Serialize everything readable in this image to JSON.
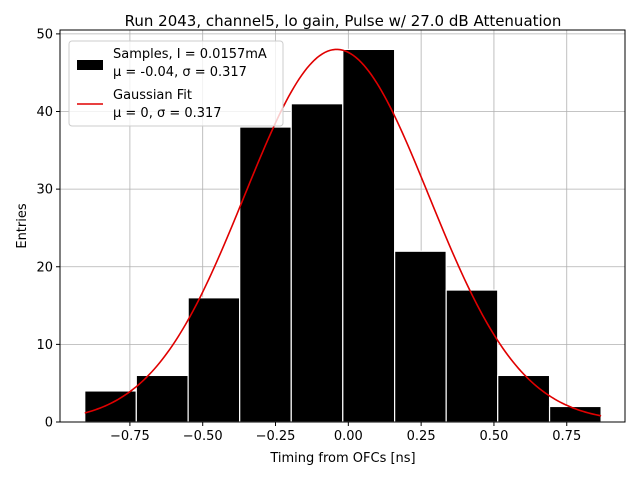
{
  "chart_data": {
    "type": "bar",
    "title": "Run 2043, channel5, lo gain, Pulse w/ 27.0 dB Attenuation",
    "xlabel": "Timing from OFCs [ns]",
    "ylabel": "Entries",
    "xlim": [
      -0.99,
      0.95
    ],
    "ylim": [
      0,
      50.5
    ],
    "xticks": [
      -0.75,
      -0.5,
      -0.25,
      0.0,
      0.25,
      0.5,
      0.75
    ],
    "xtick_labels": [
      "−0.75",
      "−0.50",
      "−0.25",
      "0.00",
      "0.25",
      "0.50",
      "0.75"
    ],
    "yticks": [
      0,
      10,
      20,
      30,
      40,
      50
    ],
    "ytick_labels": [
      "0",
      "10",
      "20",
      "30",
      "40",
      "50"
    ],
    "grid": true,
    "bin_edges": [
      -0.905,
      -0.728,
      -0.55,
      -0.373,
      -0.196,
      -0.019,
      0.159,
      0.336,
      0.513,
      0.691,
      0.868
    ],
    "values": [
      4,
      6,
      16,
      38,
      41,
      48,
      22,
      17,
      6,
      2
    ],
    "bar_color": "#000000",
    "fit": {
      "name": "Gaussian Fit",
      "stats": "μ = 0, σ = 0.317",
      "mu": -0.04,
      "sigma": 0.317,
      "amplitude": 48,
      "x_range": [
        -0.905,
        0.868
      ],
      "color": "#e00000"
    },
    "series": [
      {
        "name": "Samples, I = 0.0157mA",
        "stats": "μ = -0.04, σ = 0.317",
        "color": "#000000"
      }
    ],
    "legend_position": "top-left"
  }
}
